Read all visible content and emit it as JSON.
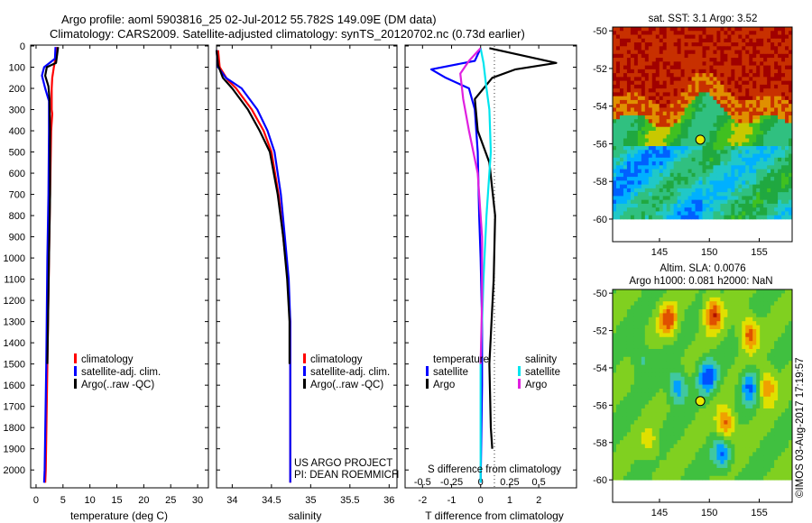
{
  "header": {
    "line1": "Argo profile: aoml 5903816_25 02-Jul-2012 55.782S 149.09E (DM data)",
    "line2": "Climatology: CARS2009. Satellite-adjusted climatology: synTS_20120702.nc (0.73d earlier)"
  },
  "colors": {
    "climatology": "#ff0000",
    "satellite": "#0000ff",
    "argo": "#000000",
    "sat_salinity": "#00e5ee",
    "argo_salinity": "#e020e0"
  },
  "depth_axis": {
    "ticks": [
      "0",
      "100",
      "200",
      "300",
      "400",
      "500",
      "600",
      "700",
      "800",
      "900",
      "1000",
      "1100",
      "1200",
      "1300",
      "1400",
      "1500",
      "1600",
      "1700",
      "1800",
      "1900",
      "2000"
    ],
    "ylim": [
      0,
      2080
    ]
  },
  "chart_data": [
    {
      "type": "line",
      "id": "temperature",
      "xlabel": "temperature (deg C)",
      "xlim": [
        -1,
        32
      ],
      "xticks": [
        "0",
        "5",
        "10",
        "15",
        "20",
        "25",
        "30"
      ],
      "xtick_values": [
        0,
        5,
        10,
        15,
        20,
        25,
        30
      ],
      "legend": [
        "climatology",
        "satellite-adj. clim.",
        "Argo(..raw -QC)"
      ],
      "series": [
        {
          "name": "climatology",
          "color": "#ff0000",
          "points": [
            [
              3.8,
              5
            ],
            [
              3.6,
              60
            ],
            [
              3.3,
              100
            ],
            [
              3.0,
              150
            ],
            [
              2.9,
              200
            ],
            [
              2.9,
              300
            ],
            [
              3.0,
              320
            ],
            [
              2.8,
              400
            ],
            [
              2.6,
              700
            ],
            [
              2.4,
              1000
            ],
            [
              2.1,
              1500
            ],
            [
              1.8,
              2000
            ],
            [
              1.7,
              2060
            ]
          ]
        },
        {
          "name": "satellite-adj. clim.",
          "color": "#0000ff",
          "points": [
            [
              3.6,
              5
            ],
            [
              3.5,
              60
            ],
            [
              1.5,
              100
            ],
            [
              1.1,
              140
            ],
            [
              1.7,
              200
            ],
            [
              2.4,
              260
            ],
            [
              2.4,
              400
            ],
            [
              2.3,
              700
            ],
            [
              2.1,
              1000
            ],
            [
              1.9,
              1500
            ],
            [
              1.6,
              2000
            ],
            [
              1.5,
              2060
            ]
          ]
        },
        {
          "name": "Argo(..raw -QC)",
          "color": "#000000",
          "points": [
            [
              4.1,
              5
            ],
            [
              3.7,
              80
            ],
            [
              2.0,
              100
            ],
            [
              1.7,
              140
            ],
            [
              2.3,
              190
            ],
            [
              2.5,
              250
            ],
            [
              2.6,
              400
            ],
            [
              2.6,
              700
            ],
            [
              2.4,
              1000
            ],
            [
              2.1,
              1500
            ]
          ]
        }
      ]
    },
    {
      "type": "line",
      "id": "salinity",
      "xlabel": "salinity",
      "xlim": [
        33.8,
        36.1
      ],
      "xticks": [
        "34",
        "34.5",
        "35",
        "35.5",
        "36"
      ],
      "xtick_values": [
        34,
        34.5,
        35,
        35.5,
        36
      ],
      "legend": [
        "climatology",
        "satellite-adj. clim.",
        "Argo(..raw -QC)"
      ],
      "annotation": [
        "US ARGO PROJECT",
        "PI: DEAN ROEMMICH"
      ],
      "series": [
        {
          "name": "climatology",
          "color": "#ff0000",
          "points": [
            [
              33.82,
              20
            ],
            [
              33.84,
              100
            ],
            [
              33.94,
              160
            ],
            [
              34.05,
              200
            ],
            [
              34.25,
              300
            ],
            [
              34.4,
              400
            ],
            [
              34.5,
              500
            ],
            [
              34.59,
              700
            ],
            [
              34.65,
              900
            ],
            [
              34.71,
              1100
            ],
            [
              34.74,
              1300
            ],
            [
              34.74,
              1600
            ],
            [
              34.74,
              2060
            ]
          ]
        },
        {
          "name": "satellite-adj. clim.",
          "color": "#0000ff",
          "points": [
            [
              33.8,
              20
            ],
            [
              33.82,
              100
            ],
            [
              33.92,
              150
            ],
            [
              34.12,
              200
            ],
            [
              34.32,
              300
            ],
            [
              34.45,
              400
            ],
            [
              34.54,
              500
            ],
            [
              34.62,
              700
            ],
            [
              34.67,
              900
            ],
            [
              34.72,
              1100
            ],
            [
              34.74,
              1300
            ],
            [
              34.74,
              1600
            ],
            [
              34.74,
              2060
            ]
          ]
        },
        {
          "name": "Argo(..raw -QC)",
          "color": "#000000",
          "points": [
            [
              33.8,
              20
            ],
            [
              33.82,
              90
            ],
            [
              33.88,
              150
            ],
            [
              34.0,
              200
            ],
            [
              34.2,
              300
            ],
            [
              34.35,
              400
            ],
            [
              34.48,
              500
            ],
            [
              34.58,
              700
            ],
            [
              34.65,
              900
            ],
            [
              34.7,
              1100
            ],
            [
              34.73,
              1300
            ],
            [
              34.73,
              1500
            ]
          ]
        }
      ]
    },
    {
      "type": "line",
      "id": "difference",
      "xlabel": "T difference from climatology",
      "xlabel_top": "S difference from climatology",
      "xlim": [
        -2.6,
        3.3
      ],
      "xticks": [
        "-2",
        "-1",
        "0",
        "1",
        "2"
      ],
      "xtick_values": [
        -2,
        -1,
        0,
        1,
        2
      ],
      "xticks_top": [
        "-0.5",
        "-0.25",
        "0",
        "0.25",
        "0.5"
      ],
      "xtick_top_values": [
        -2,
        -1,
        0,
        1,
        2
      ],
      "legend_left_title": "temperature",
      "legend_right_title": "salinity",
      "legend": [
        "satellite",
        "Argo",
        "satellite",
        "Argo"
      ],
      "series": [
        {
          "name": "satellite",
          "color": "#0000ff",
          "points": [
            [
              0.0,
              10
            ],
            [
              -0.2,
              70
            ],
            [
              -1.7,
              110
            ],
            [
              -1.2,
              150
            ],
            [
              -0.4,
              200
            ],
            [
              -0.2,
              300
            ],
            [
              -0.1,
              500
            ],
            [
              -0.05,
              800
            ],
            [
              0.0,
              1000
            ],
            [
              0.05,
              1300
            ],
            [
              0.05,
              1600
            ],
            [
              0.0,
              2060
            ]
          ]
        },
        {
          "name": "Argo",
          "color": "#000000",
          "points": [
            [
              0.3,
              10
            ],
            [
              2.6,
              80
            ],
            [
              1.2,
              110
            ],
            [
              0.4,
              150
            ],
            [
              -0.2,
              250
            ],
            [
              -0.1,
              400
            ],
            [
              0.3,
              550
            ],
            [
              0.5,
              800
            ],
            [
              0.45,
              1100
            ],
            [
              0.3,
              1500
            ],
            [
              0.35,
              1800
            ],
            [
              0.4,
              1900
            ]
          ]
        },
        {
          "name": "satellite",
          "color": "#00e5ee",
          "points": [
            [
              0.0,
              10
            ],
            [
              0.1,
              80
            ],
            [
              0.2,
              200
            ],
            [
              0.3,
              300
            ],
            [
              0.35,
              500
            ],
            [
              0.2,
              800
            ],
            [
              0.1,
              1100
            ],
            [
              0.0,
              1500
            ],
            [
              0.0,
              2060
            ]
          ]
        },
        {
          "name": "Argo",
          "color": "#e020e0",
          "points": [
            [
              0.0,
              10
            ],
            [
              -0.4,
              70
            ],
            [
              -0.7,
              130
            ],
            [
              -0.6,
              250
            ],
            [
              -0.4,
              400
            ],
            [
              -0.1,
              600
            ],
            [
              0.05,
              900
            ],
            [
              0.05,
              1200
            ],
            [
              0.0,
              1500
            ]
          ]
        }
      ]
    },
    {
      "type": "heatmap",
      "id": "sst_map",
      "title": "sat. SST: 3.1 Argo: 3.52",
      "xlim": [
        140.3,
        158.3
      ],
      "ylim": [
        -61.2,
        -49.8
      ],
      "xticks": [
        "145",
        "150",
        "155"
      ],
      "xtick_values": [
        145,
        150,
        155
      ],
      "yticks": [
        "-50",
        "-52",
        "-54",
        "-56",
        "-58",
        "-60"
      ],
      "ytick_values": [
        -50,
        -52,
        -54,
        -56,
        -58,
        -60
      ],
      "data_rows": 10,
      "marker": [
        149.09,
        -55.78
      ],
      "valid_lat_min": -60
    },
    {
      "type": "heatmap",
      "id": "sla_map",
      "title": "Altim. SLA: 0.0076",
      "subtitle": "Argo h1000: 0.081 h2000: NaN",
      "xlim": [
        140.3,
        158.3
      ],
      "ylim": [
        -61.2,
        -49.8
      ],
      "xticks": [
        "145",
        "150",
        "155"
      ],
      "xtick_values": [
        145,
        150,
        155
      ],
      "yticks": [
        "-50",
        "-52",
        "-54",
        "-56",
        "-58",
        "-60"
      ],
      "ytick_values": [
        -50,
        -52,
        -54,
        -56,
        -58,
        -60
      ],
      "marker": [
        149.09,
        -55.78
      ],
      "valid_lat_min": -60
    }
  ],
  "footer": {
    "stamp": "©IMOS 03-Aug-2017 17:19:57"
  }
}
